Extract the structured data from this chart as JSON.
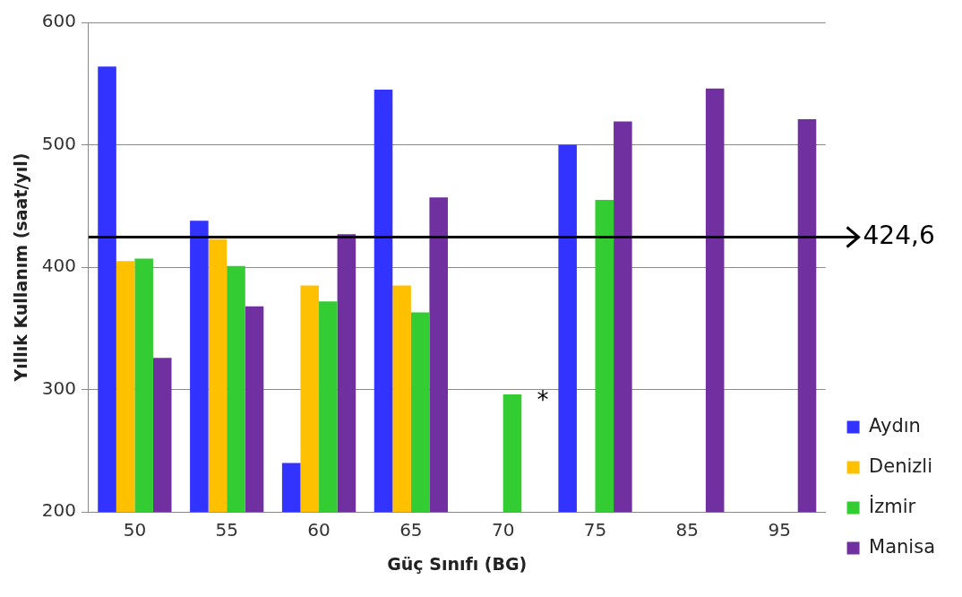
{
  "chart_data": {
    "type": "bar",
    "xlabel": "Güç Sınıfı (BG)",
    "ylabel": "Yıllık Kullanım (saat/yıl)",
    "categories": [
      "50",
      "55",
      "60",
      "65",
      "70",
      "75",
      "85",
      "95"
    ],
    "series": [
      {
        "name": "Aydın",
        "color": "#3333ff",
        "values": [
          564,
          438,
          240,
          545,
          null,
          500,
          null,
          null
        ]
      },
      {
        "name": "Denizli",
        "color": "#ffc000",
        "values": [
          405,
          423,
          385,
          385,
          null,
          null,
          null,
          null
        ]
      },
      {
        "name": "İzmir",
        "color": "#33cc33",
        "values": [
          407,
          401,
          372,
          363,
          296,
          455,
          null,
          null
        ]
      },
      {
        "name": "Manisa",
        "color": "#7030a0",
        "values": [
          326,
          368,
          427,
          457,
          null,
          519,
          546,
          521
        ]
      }
    ],
    "ylim": [
      200,
      600
    ],
    "yticks": [
      200,
      300,
      400,
      500,
      600
    ],
    "grid": "y",
    "legend": "right",
    "ref_lines": [
      {
        "axis": "y",
        "value": 424.6,
        "label": "424,6",
        "color": "#000000"
      }
    ],
    "annotations": [
      {
        "text": "*",
        "x": "70",
        "y": 290
      }
    ]
  }
}
